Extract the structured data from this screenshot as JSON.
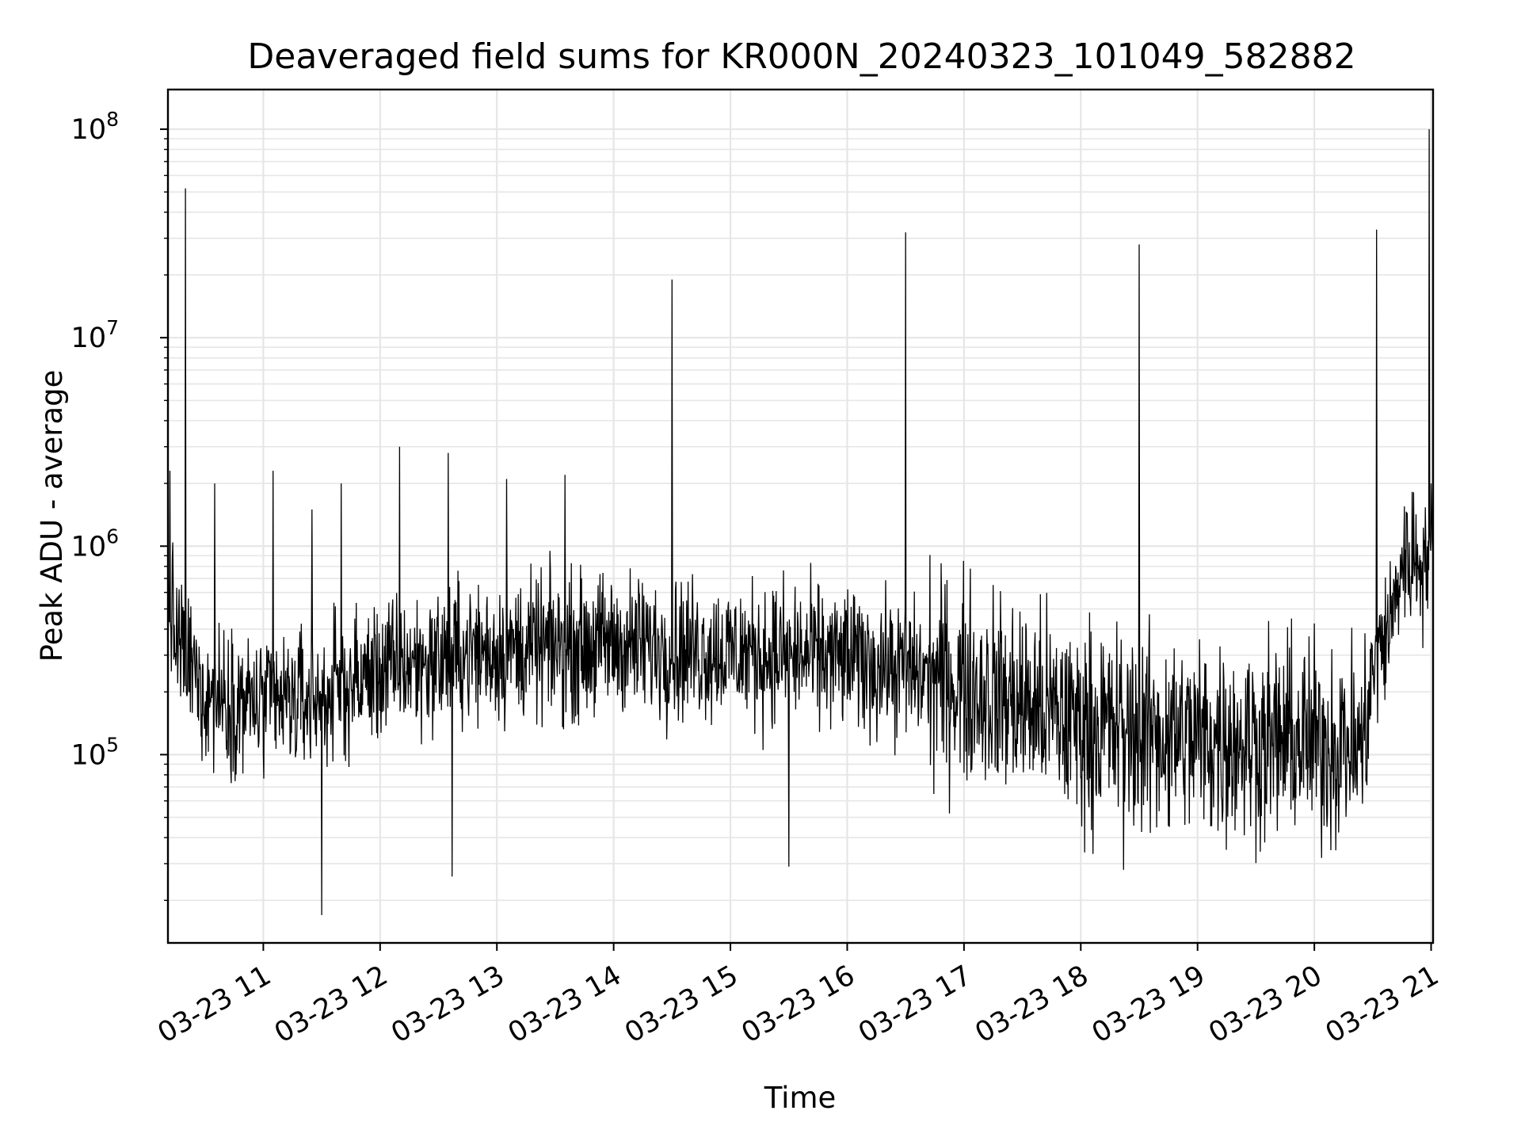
{
  "chart_data": {
    "type": "line",
    "title": "Deaveraged field sums for KR000N_20240323_101049_582882",
    "xlabel": "Time",
    "ylabel": "Peak ADU - average",
    "yscale": "log",
    "grid": true,
    "legend": "none",
    "x_ticks": [
      "03-23 11",
      "03-23 12",
      "03-23 13",
      "03-23 14",
      "03-23 15",
      "03-23 16",
      "03-23 17",
      "03-23 18",
      "03-23 19",
      "03-23 20",
      "03-23 21"
    ],
    "y_ticks": [
      {
        "base": "10",
        "exp": "5",
        "value": 100000
      },
      {
        "base": "10",
        "exp": "6",
        "value": 1000000
      },
      {
        "base": "10",
        "exp": "7",
        "value": 10000000
      },
      {
        "base": "10",
        "exp": "8",
        "value": 100000000
      }
    ],
    "xlim": [
      "2024-03-23 10:11",
      "2024-03-23 21:01"
    ],
    "ylim": [
      12500,
      155000000
    ],
    "line_color": "#000000",
    "grid_color": "#e6e6e6",
    "baseline": [
      {
        "t": "2024-03-23 10:11",
        "v": 600000
      },
      {
        "t": "2024-03-23 10:15",
        "v": 350000
      },
      {
        "t": "2024-03-23 10:30",
        "v": 200000
      },
      {
        "t": "2024-03-23 11:00",
        "v": 170000
      },
      {
        "t": "2024-03-23 11:30",
        "v": 190000
      },
      {
        "t": "2024-03-23 12:00",
        "v": 250000
      },
      {
        "t": "2024-03-23 12:45",
        "v": 310000
      },
      {
        "t": "2024-03-23 14:00",
        "v": 340000
      },
      {
        "t": "2024-03-23 15:00",
        "v": 310000
      },
      {
        "t": "2024-03-23 16:00",
        "v": 290000
      },
      {
        "t": "2024-03-23 17:00",
        "v": 220000
      },
      {
        "t": "2024-03-23 18:00",
        "v": 140000
      },
      {
        "t": "2024-03-23 19:00",
        "v": 120000
      },
      {
        "t": "2024-03-23 20:00",
        "v": 115000
      },
      {
        "t": "2024-03-23 20:25",
        "v": 110000
      },
      {
        "t": "2024-03-23 20:30",
        "v": 250000
      },
      {
        "t": "2024-03-23 20:40",
        "v": 450000
      },
      {
        "t": "2024-03-23 20:45",
        "v": 850000
      },
      {
        "t": "2024-03-23 21:01",
        "v": 900000
      }
    ],
    "spikes": [
      {
        "t": "2024-03-23 10:12",
        "v": 2300000
      },
      {
        "t": "2024-03-23 10:20",
        "v": 52000000
      },
      {
        "t": "2024-03-23 10:35",
        "v": 2000000
      },
      {
        "t": "2024-03-23 11:05",
        "v": 2300000
      },
      {
        "t": "2024-03-23 11:25",
        "v": 1500000
      },
      {
        "t": "2024-03-23 11:30",
        "v": 17000
      },
      {
        "t": "2024-03-23 11:40",
        "v": 2000000
      },
      {
        "t": "2024-03-23 12:10",
        "v": 3000000
      },
      {
        "t": "2024-03-23 12:35",
        "v": 2800000
      },
      {
        "t": "2024-03-23 12:37",
        "v": 26000
      },
      {
        "t": "2024-03-23 13:05",
        "v": 2100000
      },
      {
        "t": "2024-03-23 13:35",
        "v": 2200000
      },
      {
        "t": "2024-03-23 14:30",
        "v": 19000000
      },
      {
        "t": "2024-03-23 15:30",
        "v": 29000
      },
      {
        "t": "2024-03-23 16:30",
        "v": 32000000
      },
      {
        "t": "2024-03-23 18:30",
        "v": 28000000
      },
      {
        "t": "2024-03-23 18:22",
        "v": 28000
      },
      {
        "t": "2024-03-23 20:32",
        "v": 33000000
      },
      {
        "t": "2024-03-23 20:59",
        "v": 100000000
      },
      {
        "t": "2024-03-23 21:00",
        "v": 2000000
      }
    ]
  }
}
